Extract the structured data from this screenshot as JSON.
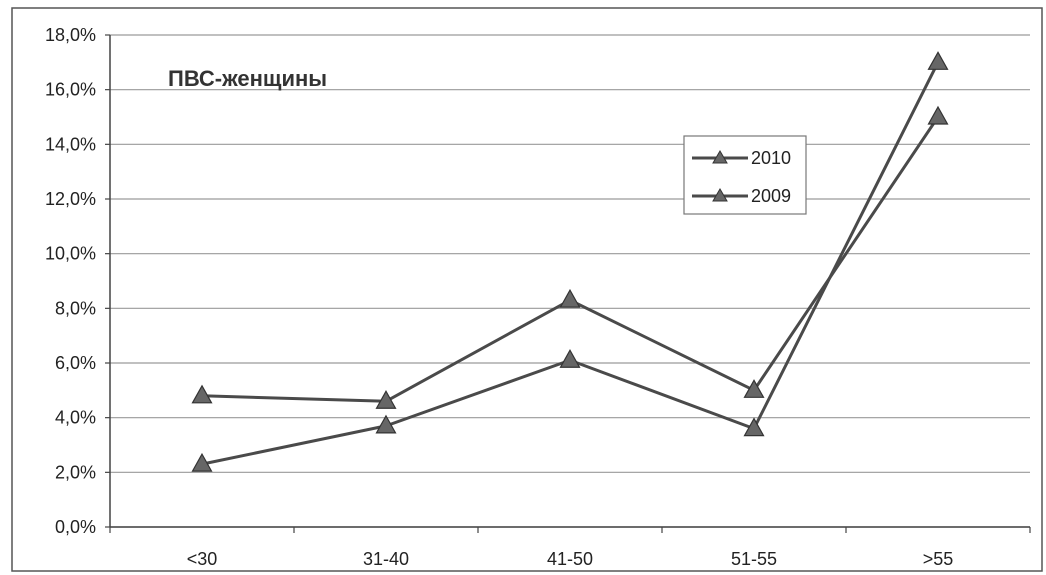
{
  "chart_data": {
    "type": "line",
    "title": "ПВС-женщины",
    "categories": [
      "<30",
      "31-40",
      "41-50",
      "51-55",
      ">55"
    ],
    "series": [
      {
        "name": "2010",
        "values": [
          2.3,
          3.7,
          6.1,
          3.6,
          17.0
        ]
      },
      {
        "name": "2009",
        "values": [
          4.8,
          4.6,
          8.3,
          5.0,
          15.0
        ]
      }
    ],
    "ylim": [
      0,
      18
    ],
    "yticks": [
      "0,0%",
      "2,0%",
      "4,0%",
      "6,0%",
      "8,0%",
      "10,0%",
      "12,0%",
      "14,0%",
      "16,0%",
      "18,0%"
    ],
    "ytick_values": [
      0,
      2,
      4,
      6,
      8,
      10,
      12,
      14,
      16,
      18
    ],
    "grid": true,
    "legend_placement": "inside-right",
    "colors": {
      "line": "#4a4a4a",
      "marker": "#666666",
      "grid": "#9a9a9a",
      "axis": "#444444"
    }
  }
}
